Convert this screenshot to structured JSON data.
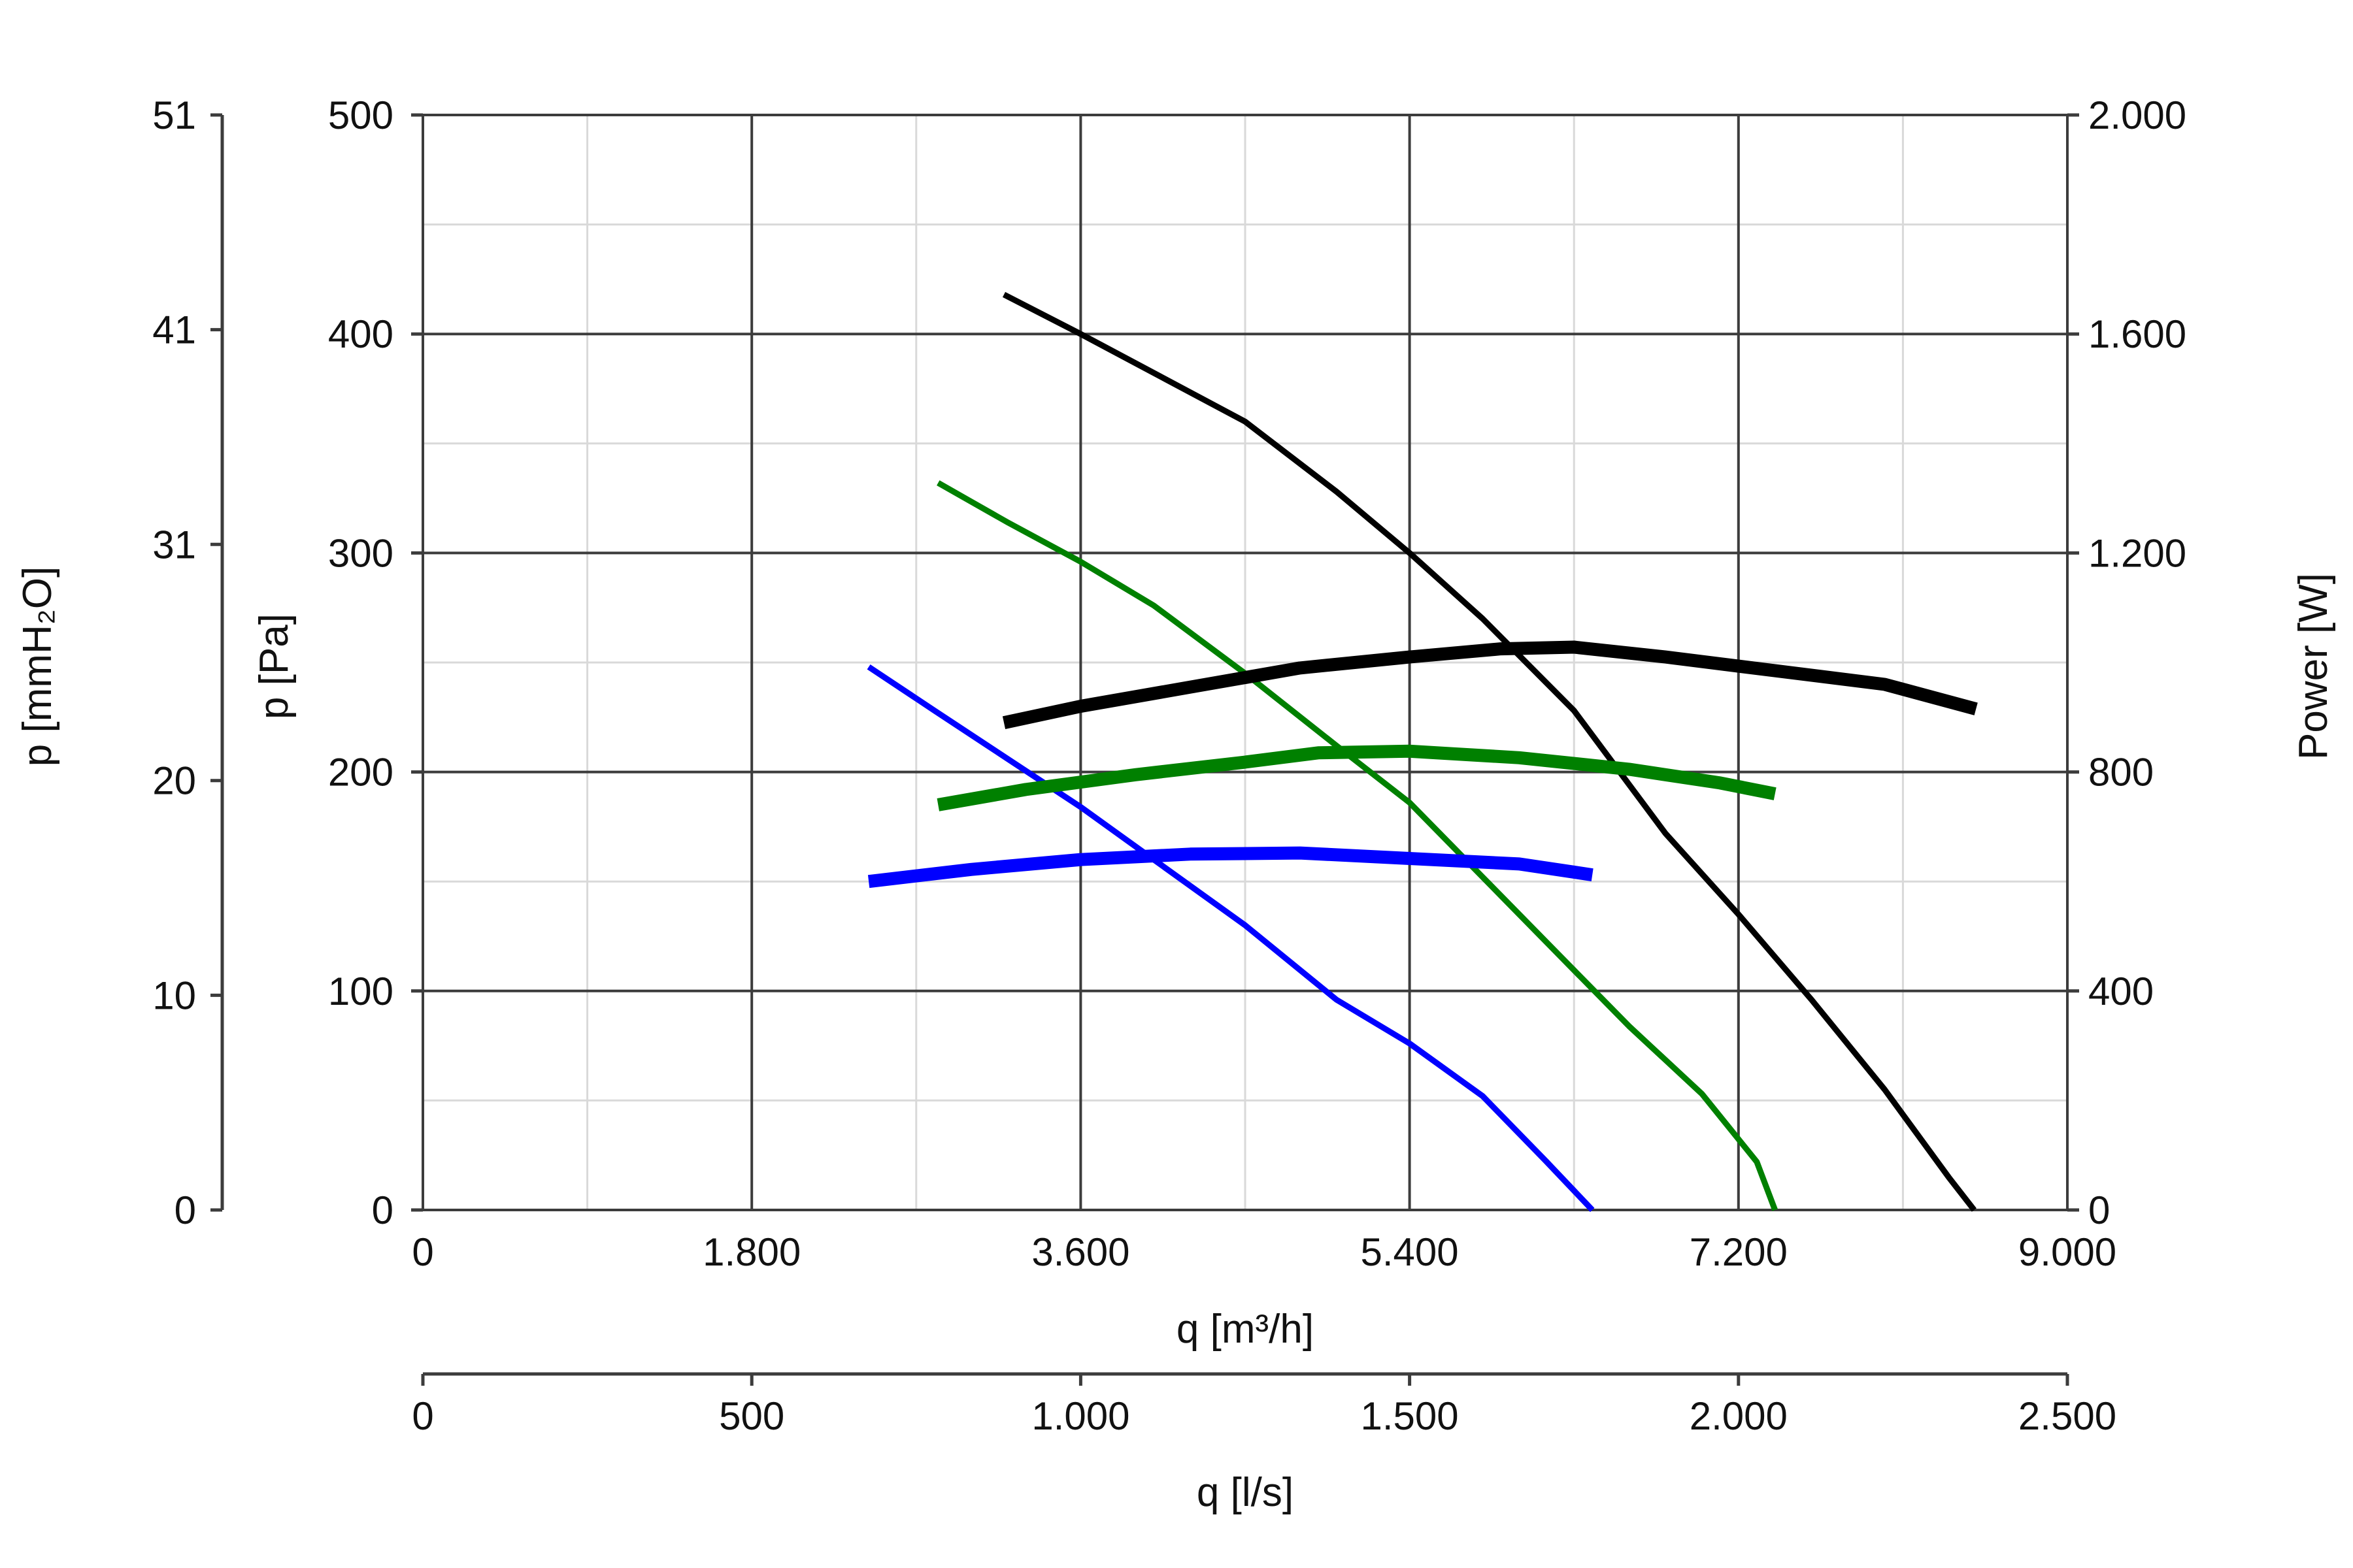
{
  "chart_data": {
    "type": "line",
    "axes": {
      "x_flow_m3h": {
        "label": "q [m³/h]",
        "range": [
          0,
          9000
        ],
        "ticks": [
          0,
          1800,
          3600,
          5400,
          7200,
          9000
        ],
        "tick_labels": [
          "0",
          "1.800",
          "3.600",
          "5.400",
          "7.200",
          "9.000"
        ]
      },
      "x_flow_ls": {
        "label": "q [l/s]",
        "range": [
          0,
          2500
        ],
        "ticks": [
          0,
          500,
          1000,
          1500,
          2000,
          2500
        ],
        "tick_labels": [
          "0",
          "500",
          "1.000",
          "1.500",
          "2.000",
          "2.500"
        ]
      },
      "y_pressure_pa": {
        "label": "p [Pa]",
        "range": [
          0,
          500
        ],
        "ticks": [
          0,
          100,
          200,
          300,
          400,
          500
        ],
        "tick_labels": [
          "0",
          "100",
          "200",
          "300",
          "400",
          "500"
        ]
      },
      "y_pressure_mmh2o": {
        "label": "p [mmH₂O]",
        "range": [
          0,
          51
        ],
        "ticks": [
          0,
          10,
          20,
          31,
          41,
          51
        ],
        "tick_labels": [
          "0",
          "10",
          "20",
          "31",
          "41",
          "51"
        ]
      },
      "y_power_w": {
        "label": "Power [W]",
        "range": [
          0,
          2000
        ],
        "ticks": [
          0,
          400,
          800,
          1200,
          1600,
          2000
        ],
        "tick_labels": [
          "0",
          "400",
          "800",
          "1.200",
          "1.600",
          "2.000"
        ]
      }
    },
    "grid": true,
    "x_minor_step": 900,
    "y_minor_step": 50,
    "series": [
      {
        "kind": "pressure",
        "axis": "pressure",
        "color": "#000000",
        "points": [
          [
            3180,
            418
          ],
          [
            3600,
            400
          ],
          [
            4500,
            360
          ],
          [
            5000,
            328
          ],
          [
            5400,
            300
          ],
          [
            5800,
            270
          ],
          [
            6300,
            228
          ],
          [
            6800,
            172
          ],
          [
            7200,
            135
          ],
          [
            7600,
            96
          ],
          [
            8000,
            55
          ],
          [
            8350,
            15
          ],
          [
            8490,
            0
          ]
        ]
      },
      {
        "kind": "pressure",
        "axis": "pressure",
        "color": "#008000",
        "points": [
          [
            2820,
            332
          ],
          [
            3200,
            314
          ],
          [
            3600,
            296
          ],
          [
            4000,
            276
          ],
          [
            4500,
            245
          ],
          [
            5000,
            212
          ],
          [
            5400,
            186
          ],
          [
            5800,
            152
          ],
          [
            6200,
            118
          ],
          [
            6600,
            84
          ],
          [
            7000,
            53
          ],
          [
            7300,
            22
          ],
          [
            7400,
            0
          ]
        ]
      },
      {
        "kind": "pressure",
        "axis": "pressure",
        "color": "#0000ff",
        "points": [
          [
            2440,
            248
          ],
          [
            2800,
            228
          ],
          [
            3200,
            206
          ],
          [
            3600,
            184
          ],
          [
            4000,
            160
          ],
          [
            4500,
            130
          ],
          [
            5000,
            96
          ],
          [
            5400,
            76
          ],
          [
            5800,
            52
          ],
          [
            6150,
            22
          ],
          [
            6400,
            0
          ]
        ]
      },
      {
        "kind": "power",
        "axis": "power",
        "color": "#000000",
        "points": [
          [
            3180,
            890
          ],
          [
            3600,
            920
          ],
          [
            4200,
            955
          ],
          [
            4800,
            990
          ],
          [
            5400,
            1010
          ],
          [
            5900,
            1025
          ],
          [
            6300,
            1028
          ],
          [
            6800,
            1010
          ],
          [
            7400,
            985
          ],
          [
            8000,
            960
          ],
          [
            8500,
            915
          ]
        ]
      },
      {
        "kind": "power",
        "axis": "power",
        "color": "#008000",
        "points": [
          [
            2820,
            740
          ],
          [
            3300,
            768
          ],
          [
            3900,
            795
          ],
          [
            4500,
            818
          ],
          [
            4900,
            835
          ],
          [
            5400,
            838
          ],
          [
            6000,
            826
          ],
          [
            6600,
            805
          ],
          [
            7100,
            780
          ],
          [
            7400,
            760
          ]
        ]
      },
      {
        "kind": "power",
        "axis": "power",
        "color": "#0000ff",
        "points": [
          [
            2440,
            600
          ],
          [
            3000,
            622
          ],
          [
            3600,
            640
          ],
          [
            4200,
            650
          ],
          [
            4800,
            652
          ],
          [
            5400,
            642
          ],
          [
            6000,
            632
          ],
          [
            6400,
            612
          ]
        ]
      }
    ]
  }
}
